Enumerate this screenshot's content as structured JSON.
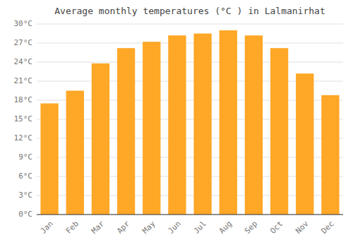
{
  "chart_data": {
    "type": "bar",
    "title": "Average monthly temperatures (°C ) in Lalmanirhat",
    "categories": [
      "Jan",
      "Feb",
      "Mar",
      "Apr",
      "May",
      "Jun",
      "Jul",
      "Aug",
      "Sep",
      "Oct",
      "Nov",
      "Dec"
    ],
    "values": [
      17.5,
      19.5,
      23.8,
      26.2,
      27.2,
      28.2,
      28.5,
      29.0,
      28.2,
      26.2,
      22.2,
      18.8
    ],
    "color": "#FFA726",
    "ylim": [
      0,
      30
    ],
    "yticks": [
      {
        "value": 0,
        "label": "0°C"
      },
      {
        "value": 3,
        "label": "3°C"
      },
      {
        "value": 6,
        "label": "6°C"
      },
      {
        "value": 9,
        "label": "9°C"
      },
      {
        "value": 12,
        "label": "12°C"
      },
      {
        "value": 15,
        "label": "15°C"
      },
      {
        "value": 18,
        "label": "18°C"
      },
      {
        "value": 21,
        "label": "21°C"
      },
      {
        "value": 24,
        "label": "24°C"
      },
      {
        "value": 27,
        "label": "27°C"
      },
      {
        "value": 30,
        "label": "30°C"
      }
    ],
    "grid": true
  }
}
